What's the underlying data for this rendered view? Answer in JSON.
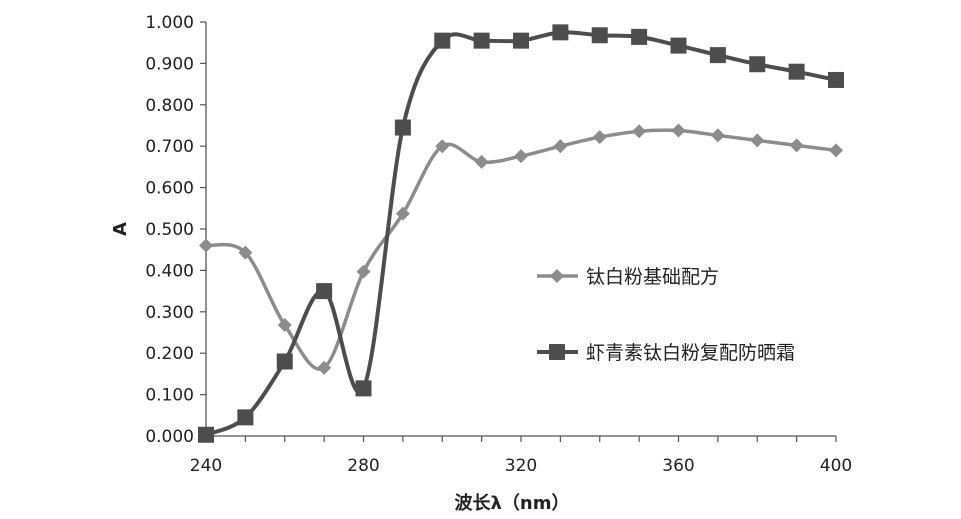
{
  "chart_data": {
    "type": "line",
    "title": "",
    "xlabel": "波长λ（nm）",
    "ylabel": "A",
    "xlim": [
      240,
      400
    ],
    "ylim": [
      0,
      1
    ],
    "xticks": [
      "240",
      "280",
      "320",
      "360",
      "400"
    ],
    "yticks": [
      "0.000",
      "0.100",
      "0.200",
      "0.300",
      "0.400",
      "0.500",
      "0.600",
      "0.700",
      "0.800",
      "0.900",
      "1.000"
    ],
    "grid": false,
    "legend_position": "center-right",
    "x": [
      240,
      250,
      260,
      270,
      280,
      290,
      300,
      310,
      320,
      330,
      340,
      350,
      360,
      370,
      380,
      390,
      400
    ],
    "series": [
      {
        "name": "钛白粉基础配方",
        "marker": "diamond",
        "color": "#8c8c8c",
        "values": [
          0.46,
          0.443,
          0.268,
          0.165,
          0.397,
          0.537,
          0.7,
          0.662,
          0.676,
          0.7,
          0.722,
          0.736,
          0.738,
          0.726,
          0.714,
          0.702,
          0.69
        ]
      },
      {
        "name": "虾青素钛白粉复配防晒霜",
        "marker": "square",
        "color": "#4d4d4d",
        "values": [
          0.003,
          0.045,
          0.18,
          0.35,
          0.115,
          0.745,
          0.955,
          0.955,
          0.955,
          0.975,
          0.968,
          0.964,
          0.943,
          0.92,
          0.898,
          0.88,
          0.86
        ]
      }
    ]
  }
}
